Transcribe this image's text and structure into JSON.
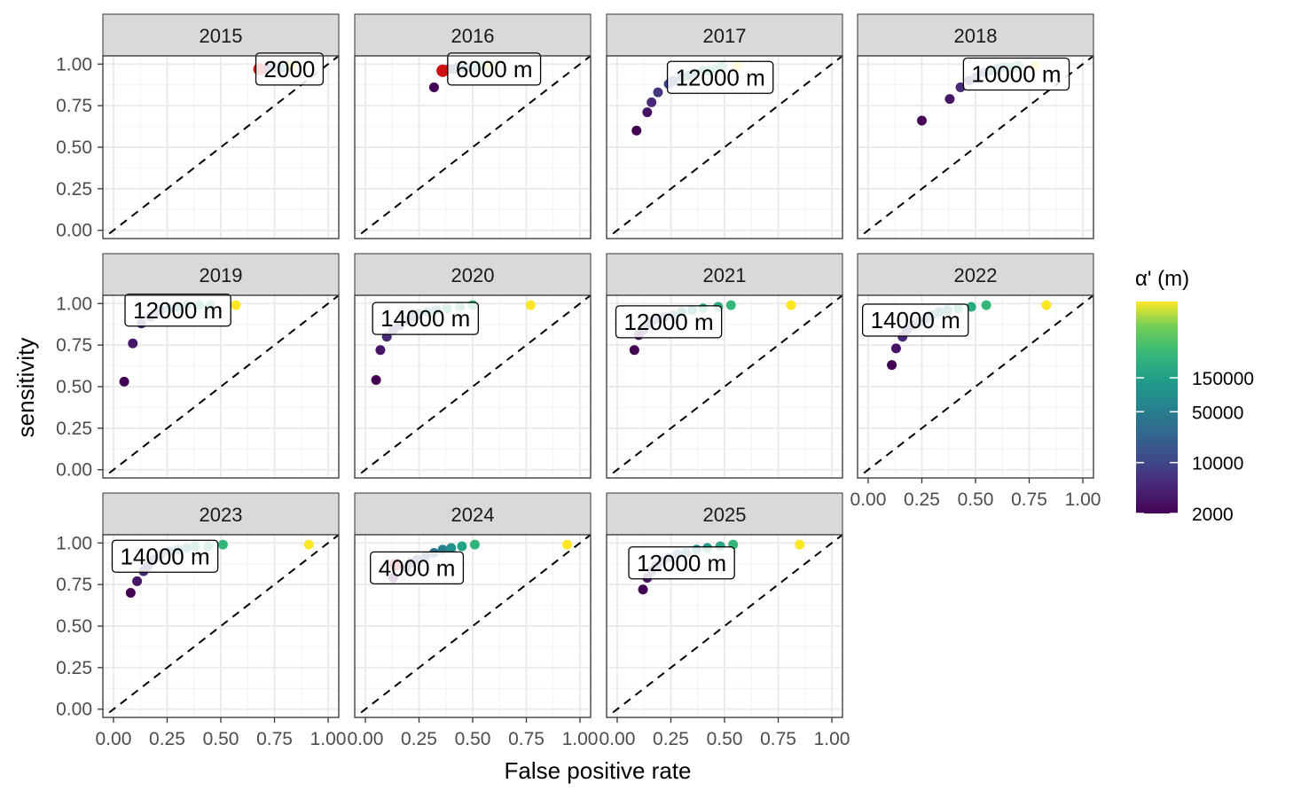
{
  "chart_data": {
    "type": "scatter",
    "xlabel": "False positive rate",
    "ylabel": "sensitivity",
    "xlim": [
      0,
      1
    ],
    "ylim": [
      0,
      1
    ],
    "x_ticks": [
      "0.00",
      "0.25",
      "0.50",
      "0.75",
      "1.00"
    ],
    "y_ticks": [
      "0.00",
      "0.25",
      "0.50",
      "0.75",
      "1.00"
    ],
    "grid": true,
    "reference_line": "diagonal dashed",
    "legend": {
      "title": "α' (m)",
      "placement": "right",
      "scale": "log",
      "labels": [
        "2000",
        "10000",
        "50000",
        "150000"
      ]
    },
    "panels": [
      {
        "name": "2015",
        "label": "2000",
        "label_at": [
          0.82,
          0.97
        ],
        "optimal": [
          0.68,
          0.97
        ],
        "points": [
          [
            0.69,
            0.97
          ],
          [
            0.71,
            0.97
          ],
          [
            0.73,
            0.98
          ],
          [
            0.75,
            0.98
          ],
          [
            0.77,
            0.98
          ],
          [
            0.79,
            0.98
          ],
          [
            0.81,
            0.99
          ],
          [
            0.83,
            0.99
          ]
        ]
      },
      {
        "name": "2016",
        "label": "6000 m",
        "label_at": [
          0.6,
          0.97
        ],
        "optimal": [
          0.36,
          0.96
        ],
        "points": [
          [
            0.32,
            0.86
          ],
          [
            0.37,
            0.96
          ],
          [
            0.39,
            0.97
          ],
          [
            0.41,
            0.97
          ],
          [
            0.43,
            0.98
          ],
          [
            0.45,
            0.98
          ],
          [
            0.48,
            0.98
          ],
          [
            0.51,
            0.98
          ],
          [
            0.54,
            0.99
          ],
          [
            0.57,
            0.99
          ],
          [
            0.58,
            0.99
          ]
        ]
      },
      {
        "name": "2017",
        "label": "12000 m",
        "label_at": [
          0.48,
          0.92
        ],
        "points": [
          [
            0.09,
            0.6
          ],
          [
            0.14,
            0.71
          ],
          [
            0.16,
            0.77
          ],
          [
            0.19,
            0.83
          ],
          [
            0.24,
            0.88
          ],
          [
            0.26,
            0.9
          ],
          [
            0.3,
            0.92
          ],
          [
            0.33,
            0.93
          ],
          [
            0.36,
            0.94
          ],
          [
            0.4,
            0.96
          ],
          [
            0.43,
            0.96
          ],
          [
            0.46,
            0.97
          ],
          [
            0.49,
            0.99
          ],
          [
            0.56,
            0.99
          ]
        ]
      },
      {
        "name": "2018",
        "label": "10000 m",
        "label_at": [
          0.69,
          0.94
        ],
        "points": [
          [
            0.25,
            0.66
          ],
          [
            0.38,
            0.79
          ],
          [
            0.43,
            0.86
          ],
          [
            0.47,
            0.9
          ],
          [
            0.5,
            0.92
          ],
          [
            0.54,
            0.95
          ],
          [
            0.57,
            0.96
          ],
          [
            0.6,
            0.97
          ],
          [
            0.62,
            0.98
          ],
          [
            0.65,
            0.98
          ],
          [
            0.68,
            0.98
          ],
          [
            0.7,
            0.99
          ],
          [
            0.78,
            0.99
          ]
        ]
      },
      {
        "name": "2019",
        "label": "12000 m",
        "label_at": [
          0.3,
          0.96
        ],
        "points": [
          [
            0.05,
            0.53
          ],
          [
            0.09,
            0.76
          ],
          [
            0.13,
            0.88
          ],
          [
            0.17,
            0.92
          ],
          [
            0.19,
            0.94
          ],
          [
            0.22,
            0.96
          ],
          [
            0.26,
            0.97
          ],
          [
            0.3,
            0.98
          ],
          [
            0.34,
            0.99
          ],
          [
            0.4,
            0.99
          ],
          [
            0.45,
            0.99
          ],
          [
            0.57,
            0.99
          ]
        ]
      },
      {
        "name": "2020",
        "label": "14000 m",
        "label_at": [
          0.28,
          0.91
        ],
        "points": [
          [
            0.05,
            0.54
          ],
          [
            0.07,
            0.72
          ],
          [
            0.1,
            0.8
          ],
          [
            0.13,
            0.84
          ],
          [
            0.16,
            0.87
          ],
          [
            0.19,
            0.9
          ],
          [
            0.22,
            0.92
          ],
          [
            0.25,
            0.94
          ],
          [
            0.29,
            0.95
          ],
          [
            0.33,
            0.96
          ],
          [
            0.38,
            0.97
          ],
          [
            0.44,
            0.98
          ],
          [
            0.5,
            0.99
          ],
          [
            0.77,
            0.99
          ]
        ]
      },
      {
        "name": "2021",
        "label": "12000 m",
        "label_at": [
          0.24,
          0.89
        ],
        "points": [
          [
            0.08,
            0.72
          ],
          [
            0.1,
            0.81
          ],
          [
            0.12,
            0.84
          ],
          [
            0.14,
            0.87
          ],
          [
            0.16,
            0.89
          ],
          [
            0.19,
            0.91
          ],
          [
            0.22,
            0.92
          ],
          [
            0.26,
            0.93
          ],
          [
            0.3,
            0.95
          ],
          [
            0.35,
            0.96
          ],
          [
            0.4,
            0.97
          ],
          [
            0.47,
            0.98
          ],
          [
            0.53,
            0.99
          ],
          [
            0.81,
            0.99
          ]
        ]
      },
      {
        "name": "2022",
        "label": "14000 m",
        "label_at": [
          0.22,
          0.9
        ],
        "points": [
          [
            0.11,
            0.63
          ],
          [
            0.13,
            0.73
          ],
          [
            0.16,
            0.8
          ],
          [
            0.18,
            0.84
          ],
          [
            0.21,
            0.87
          ],
          [
            0.24,
            0.89
          ],
          [
            0.27,
            0.91
          ],
          [
            0.3,
            0.93
          ],
          [
            0.33,
            0.95
          ],
          [
            0.37,
            0.96
          ],
          [
            0.42,
            0.97
          ],
          [
            0.48,
            0.98
          ],
          [
            0.55,
            0.99
          ],
          [
            0.83,
            0.99
          ]
        ]
      },
      {
        "name": "2023",
        "label": "14000 m",
        "label_at": [
          0.24,
          0.92
        ],
        "points": [
          [
            0.08,
            0.7
          ],
          [
            0.11,
            0.77
          ],
          [
            0.14,
            0.83
          ],
          [
            0.16,
            0.86
          ],
          [
            0.19,
            0.9
          ],
          [
            0.22,
            0.93
          ],
          [
            0.26,
            0.95
          ],
          [
            0.3,
            0.96
          ],
          [
            0.34,
            0.97
          ],
          [
            0.38,
            0.98
          ],
          [
            0.44,
            0.98
          ],
          [
            0.51,
            0.99
          ],
          [
            0.91,
            0.99
          ]
        ]
      },
      {
        "name": "2024",
        "label": "4000 m",
        "label_at": [
          0.24,
          0.85
        ],
        "optimal": [
          0.14,
          0.87
        ],
        "points": [
          [
            0.13,
            0.79
          ],
          [
            0.19,
            0.85
          ],
          [
            0.21,
            0.88
          ],
          [
            0.24,
            0.9
          ],
          [
            0.28,
            0.92
          ],
          [
            0.32,
            0.94
          ],
          [
            0.36,
            0.96
          ],
          [
            0.4,
            0.97
          ],
          [
            0.45,
            0.98
          ],
          [
            0.51,
            0.99
          ],
          [
            0.94,
            0.99
          ]
        ]
      },
      {
        "name": "2025",
        "label": "12000 m",
        "label_at": [
          0.3,
          0.88
        ],
        "points": [
          [
            0.12,
            0.72
          ],
          [
            0.14,
            0.79
          ],
          [
            0.16,
            0.83
          ],
          [
            0.18,
            0.86
          ],
          [
            0.21,
            0.89
          ],
          [
            0.24,
            0.91
          ],
          [
            0.28,
            0.93
          ],
          [
            0.32,
            0.94
          ],
          [
            0.37,
            0.96
          ],
          [
            0.42,
            0.97
          ],
          [
            0.48,
            0.98
          ],
          [
            0.54,
            0.99
          ],
          [
            0.85,
            0.99
          ]
        ]
      }
    ]
  }
}
